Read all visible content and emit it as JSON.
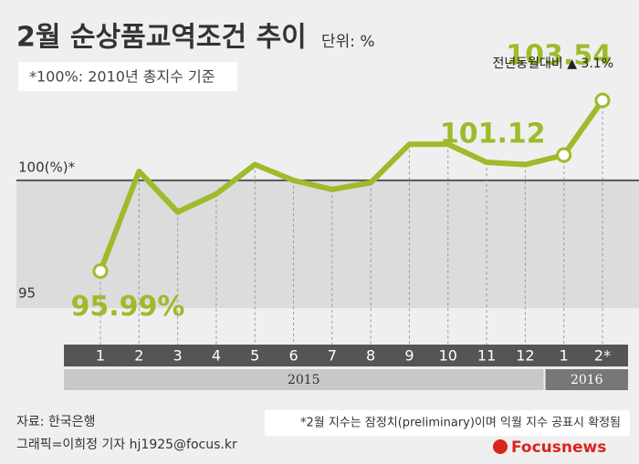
{
  "chart_data": {
    "type": "line",
    "title": "2월 순상품교역조건 추이",
    "unit": "단위: %",
    "note": "*100%: 2010년 총지수 기준",
    "categories": [
      "1",
      "2",
      "3",
      "4",
      "5",
      "6",
      "7",
      "8",
      "9",
      "10",
      "11",
      "12",
      "1",
      "2*"
    ],
    "year_groups": [
      {
        "label": "2015",
        "count": 12
      },
      {
        "label": "2016",
        "count": 2
      }
    ],
    "series": [
      {
        "name": "순상품교역조건",
        "color": "#9dbb2b",
        "values": [
          95.99,
          100.4,
          98.6,
          99.4,
          100.7,
          100.0,
          99.6,
          99.9,
          101.6,
          101.6,
          100.8,
          100.7,
          101.12,
          103.54
        ],
        "value_labels": [
          "95.99%",
          null,
          null,
          null,
          null,
          null,
          null,
          null,
          null,
          null,
          null,
          null,
          "101.12",
          "103.54"
        ]
      }
    ],
    "annotation": "전년동월대비 ▲ 3.1%",
    "ylim": [
      94.35,
      105.56
    ],
    "yticks": [
      95,
      {
        "value": 100,
        "label": "100(%)*"
      }
    ],
    "source": "자료: 한국은행",
    "credit": "그래픽=이희정 기자 hj1925@focus.kr",
    "footnote": "*2월 지수는 잠정치(preliminary)이며 익월 지수 공표시 확정됨",
    "logo": "Focusnews"
  }
}
